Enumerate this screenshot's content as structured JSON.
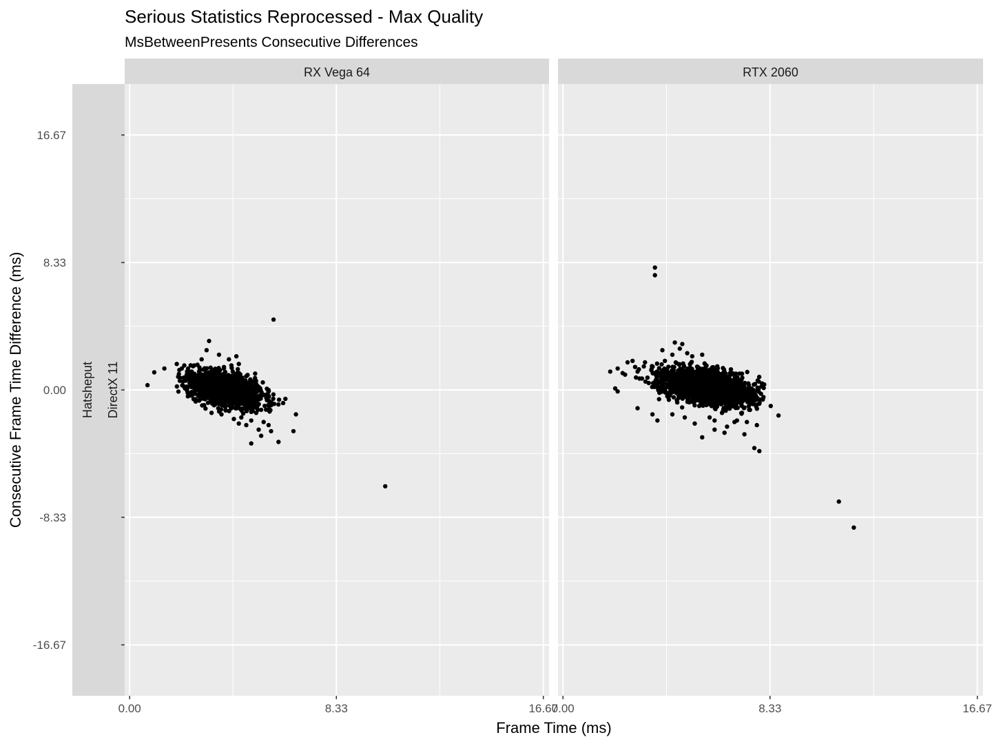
{
  "chart_data": {
    "type": "scatter",
    "title": "Serious Statistics Reprocessed - Max Quality",
    "subtitle": "MsBetweenPresents Consecutive Differences",
    "xlabel": "Frame Time (ms)",
    "ylabel": "Consecutive Frame Time Difference (ms)",
    "xlim": [
      -0.2,
      16.9
    ],
    "ylim": [
      -20.0,
      20.0
    ],
    "x_ticks": [
      0.0,
      8.33,
      16.67
    ],
    "x_tick_labels": [
      "0.00",
      "8.33",
      "16.67"
    ],
    "y_ticks": [
      16.67,
      8.33,
      0.0,
      -8.33,
      -16.67
    ],
    "y_tick_labels": [
      "16.67",
      "8.33",
      "0.00",
      "-8.33",
      "-16.67"
    ],
    "grid": true,
    "facet_row_labels": [
      "Hatsheput",
      "DirectX 11"
    ],
    "point_color": "#000000",
    "panel_background": "#ebebeb",
    "strip_background": "#d9d9d9",
    "panels": [
      {
        "name": "RX Vega 64",
        "cluster": {
          "center": [
            3.9,
            0.0
          ],
          "slope": -0.55,
          "spread_along": 0.75,
          "spread_across": 0.45,
          "count": 1700
        },
        "points": [
          [
            1.4,
            1.4
          ],
          [
            1.9,
            1.7
          ],
          [
            2.0,
            1.3
          ],
          [
            2.2,
            1.6
          ],
          [
            2.3,
            1.0
          ],
          [
            2.6,
            1.6
          ],
          [
            2.9,
            2.0
          ],
          [
            3.2,
            3.2
          ],
          [
            3.1,
            2.6
          ],
          [
            3.6,
            2.3
          ],
          [
            3.8,
            1.4
          ],
          [
            4.1,
            1.6
          ],
          [
            4.3,
            2.2
          ],
          [
            4.0,
            2.0
          ],
          [
            4.4,
            1.7
          ],
          [
            2.1,
            1.4
          ],
          [
            2.5,
            1.2
          ],
          [
            4.7,
            0.9
          ],
          [
            5.2,
            0.2
          ],
          [
            5.0,
            -1.0
          ],
          [
            5.1,
            -1.5
          ],
          [
            5.3,
            -1.3
          ],
          [
            4.9,
            -2.0
          ],
          [
            5.4,
            -2.1
          ],
          [
            5.2,
            -2.6
          ],
          [
            4.7,
            -2.3
          ],
          [
            4.4,
            -2.2
          ],
          [
            4.5,
            -1.8
          ],
          [
            3.3,
            -1.5
          ],
          [
            3.7,
            -1.6
          ],
          [
            3.0,
            -1.0
          ],
          [
            3.4,
            -1.0
          ],
          [
            5.6,
            -2.3
          ],
          [
            5.3,
            -3.0
          ],
          [
            5.7,
            -2.7
          ],
          [
            4.9,
            -3.5
          ],
          [
            6.0,
            -3.4
          ],
          [
            6.6,
            -2.7
          ],
          [
            6.7,
            -1.6
          ],
          [
            5.7,
            -1.0
          ],
          [
            5.8,
            4.6
          ],
          [
            10.3,
            -6.3
          ],
          [
            2.8,
            -0.7
          ],
          [
            4.2,
            -1.9
          ],
          [
            4.8,
            -1.2
          ],
          [
            2.7,
            0.5
          ]
        ]
      },
      {
        "name": "RTX 2060",
        "cluster": {
          "center": [
            5.8,
            0.2
          ],
          "slope": -0.4,
          "spread_along": 0.9,
          "spread_across": 0.5,
          "count": 2100
        },
        "points": [
          [
            3.7,
            8.0
          ],
          [
            3.7,
            7.5
          ],
          [
            1.9,
            1.2
          ],
          [
            2.2,
            1.4
          ],
          [
            2.4,
            1.1
          ],
          [
            2.5,
            1.0
          ],
          [
            2.1,
            0.1
          ],
          [
            2.2,
            -0.1
          ],
          [
            2.6,
            1.8
          ],
          [
            2.8,
            1.9
          ],
          [
            2.9,
            1.5
          ],
          [
            3.0,
            1.2
          ],
          [
            3.3,
            1.8
          ],
          [
            4.0,
            2.6
          ],
          [
            4.5,
            3.1
          ],
          [
            4.8,
            3.0
          ],
          [
            4.7,
            2.7
          ],
          [
            5.0,
            2.4
          ],
          [
            5.6,
            2.3
          ],
          [
            4.4,
            2.3
          ],
          [
            5.2,
            2.2
          ],
          [
            3.0,
            -1.2
          ],
          [
            3.6,
            -1.6
          ],
          [
            3.8,
            -2.0
          ],
          [
            4.4,
            -1.6
          ],
          [
            5.3,
            -2.2
          ],
          [
            5.6,
            -3.1
          ],
          [
            6.1,
            -2.0
          ],
          [
            6.6,
            -2.4
          ],
          [
            6.9,
            -2.1
          ],
          [
            6.5,
            -2.8
          ],
          [
            7.0,
            -2.0
          ],
          [
            7.4,
            -2.1
          ],
          [
            7.3,
            -2.9
          ],
          [
            7.8,
            -2.3
          ],
          [
            7.2,
            -1.5
          ],
          [
            7.7,
            -3.8
          ],
          [
            7.9,
            -4.0
          ],
          [
            11.1,
            -7.3
          ],
          [
            11.7,
            -9.0
          ],
          [
            6.4,
            -1.5
          ],
          [
            4.9,
            -1.8
          ],
          [
            3.4,
            0.8
          ],
          [
            6.1,
            -2.6
          ],
          [
            5.9,
            -1.8
          ],
          [
            4.1,
            1.9
          ]
        ]
      }
    ]
  }
}
